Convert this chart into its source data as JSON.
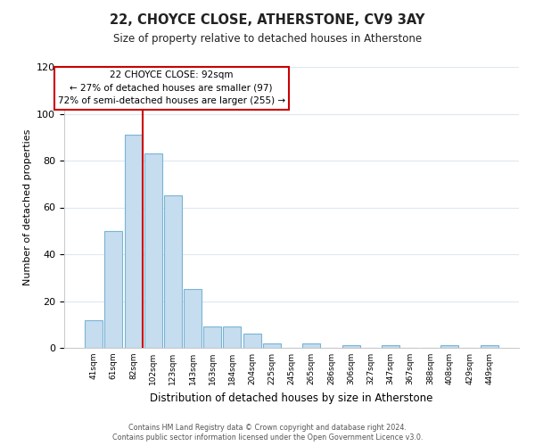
{
  "title": "22, CHOYCE CLOSE, ATHERSTONE, CV9 3AY",
  "subtitle": "Size of property relative to detached houses in Atherstone",
  "xlabel": "Distribution of detached houses by size in Atherstone",
  "ylabel": "Number of detached properties",
  "bin_labels": [
    "41sqm",
    "61sqm",
    "82sqm",
    "102sqm",
    "123sqm",
    "143sqm",
    "163sqm",
    "184sqm",
    "204sqm",
    "225sqm",
    "245sqm",
    "265sqm",
    "286sqm",
    "306sqm",
    "327sqm",
    "347sqm",
    "367sqm",
    "388sqm",
    "408sqm",
    "429sqm",
    "449sqm"
  ],
  "bar_values": [
    12,
    50,
    91,
    83,
    65,
    25,
    9,
    9,
    6,
    2,
    0,
    2,
    0,
    1,
    0,
    1,
    0,
    0,
    1,
    0,
    1
  ],
  "bar_color": "#c5ddef",
  "bar_edge_color": "#7ab4d4",
  "property_line_color": "#cc0000",
  "property_line_bar_index": 2,
  "ylim": [
    0,
    120
  ],
  "yticks": [
    0,
    20,
    40,
    60,
    80,
    100,
    120
  ],
  "annotation_title": "22 CHOYCE CLOSE: 92sqm",
  "annotation_line1": "← 27% of detached houses are smaller (97)",
  "annotation_line2": "72% of semi-detached houses are larger (255) →",
  "annotation_box_color": "#ffffff",
  "annotation_box_edge": "#cc0000",
  "footer_line1": "Contains HM Land Registry data © Crown copyright and database right 2024.",
  "footer_line2": "Contains public sector information licensed under the Open Government Licence v3.0.",
  "background_color": "#ffffff",
  "grid_color": "#dde8f0"
}
